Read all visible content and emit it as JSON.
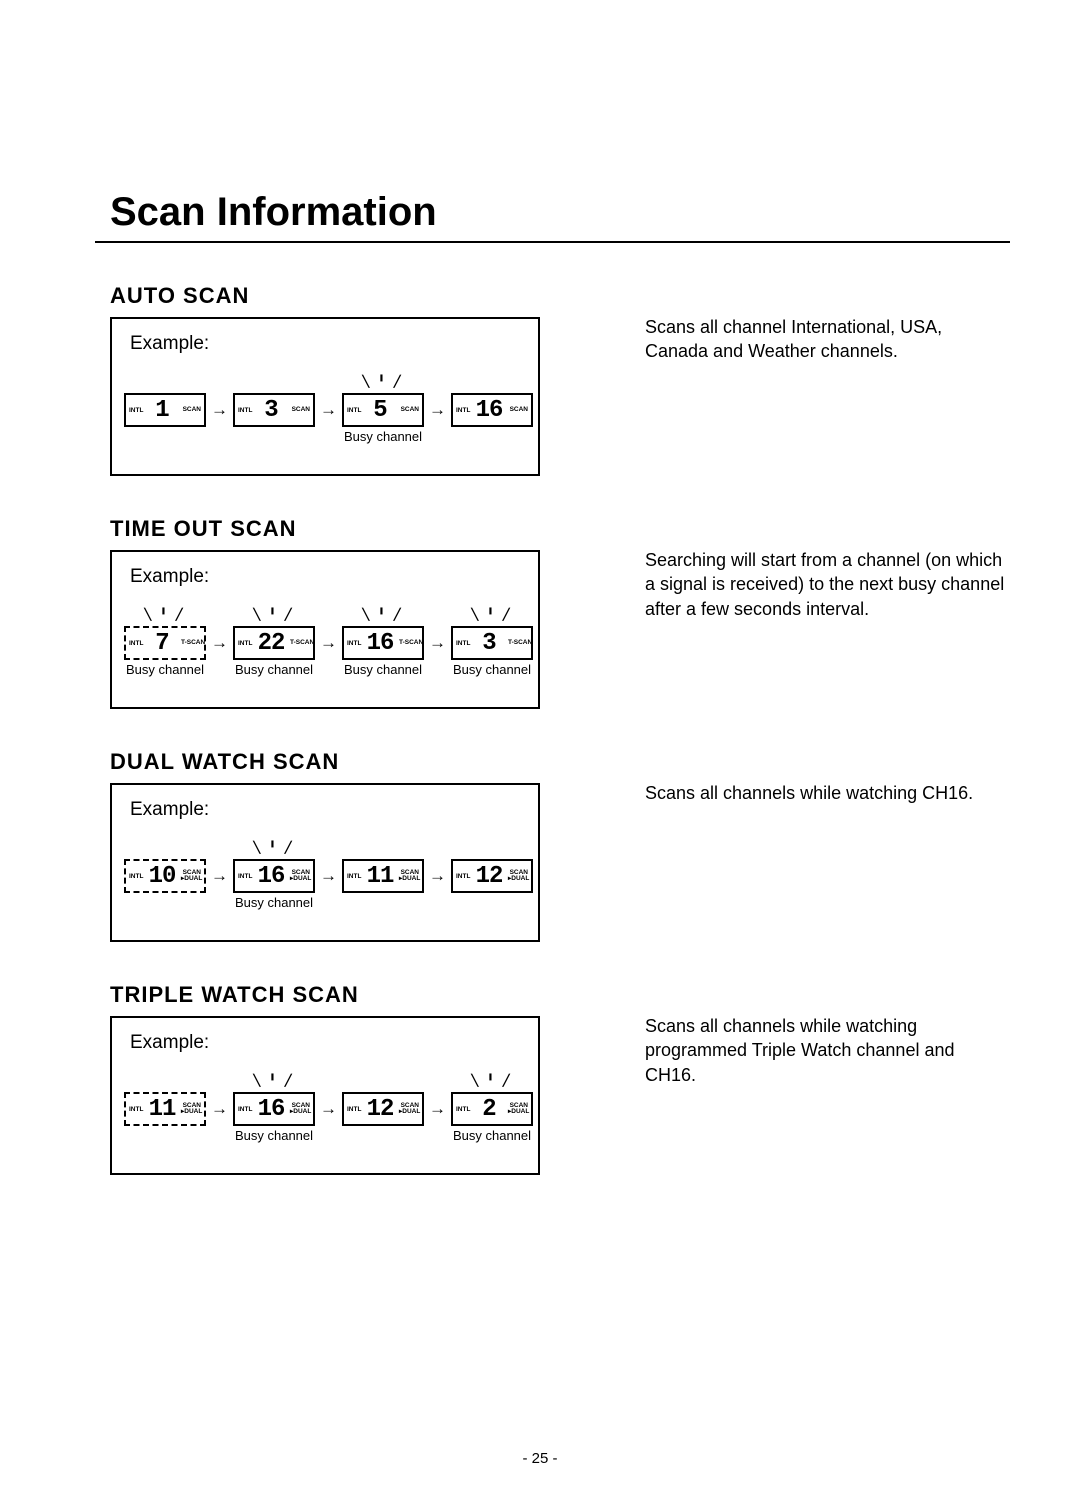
{
  "page": {
    "title": "Scan Information",
    "number": "- 25 -"
  },
  "labels": {
    "example": "Example:",
    "busy": "Busy channel",
    "intl": "INTL",
    "scan": "SCAN",
    "tscan": "T-SCAN",
    "scan_dual": "SCAN\n▸DUAL",
    "radiate": "╲ ╹ ╱"
  },
  "sections": {
    "auto": {
      "heading": "AUTO SCAN",
      "desc": "Scans all channel International, USA, Canada and Weather channels.",
      "steps": [
        {
          "num": "1",
          "right": "scan",
          "busy": false,
          "radiate": false
        },
        {
          "num": "3",
          "right": "scan",
          "busy": false,
          "radiate": false
        },
        {
          "num": "5",
          "right": "scan",
          "busy": true,
          "radiate": true
        },
        {
          "num": "16",
          "right": "scan",
          "busy": false,
          "radiate": false
        }
      ]
    },
    "timeout": {
      "heading": "TIME OUT SCAN",
      "desc": "Searching will start from a channel (on which a signal is received) to the next busy channel after a few seconds interval.",
      "steps": [
        {
          "num": "7",
          "right": "tscan",
          "busy": true,
          "radiate": true,
          "dashed": true
        },
        {
          "num": "22",
          "right": "tscan",
          "busy": true,
          "radiate": true
        },
        {
          "num": "16",
          "right": "tscan",
          "busy": true,
          "radiate": true
        },
        {
          "num": "3",
          "right": "tscan",
          "busy": true,
          "radiate": true
        }
      ]
    },
    "dual": {
      "heading": "DUAL WATCH SCAN",
      "desc": "Scans all channels while watching CH16.",
      "steps": [
        {
          "num": "10",
          "right": "scan_dual",
          "busy": false,
          "radiate": false,
          "dashed": true
        },
        {
          "num": "16",
          "right": "scan_dual",
          "busy": true,
          "radiate": true
        },
        {
          "num": "11",
          "right": "scan_dual",
          "busy": false,
          "radiate": false
        },
        {
          "num": "12",
          "right": "scan_dual",
          "busy": false,
          "radiate": false
        }
      ]
    },
    "triple": {
      "heading": "TRIPLE WATCH SCAN",
      "desc": "Scans all channels while watching programmed Triple Watch channel and CH16.",
      "steps": [
        {
          "num": "11",
          "right": "scan_dual",
          "busy": false,
          "radiate": false,
          "dashed": true
        },
        {
          "num": "16",
          "right": "scan_dual",
          "busy": true,
          "radiate": true
        },
        {
          "num": "12",
          "right": "scan_dual",
          "busy": false,
          "radiate": false
        },
        {
          "num": "2",
          "right": "scan_dual",
          "busy": true,
          "radiate": true
        }
      ]
    }
  }
}
